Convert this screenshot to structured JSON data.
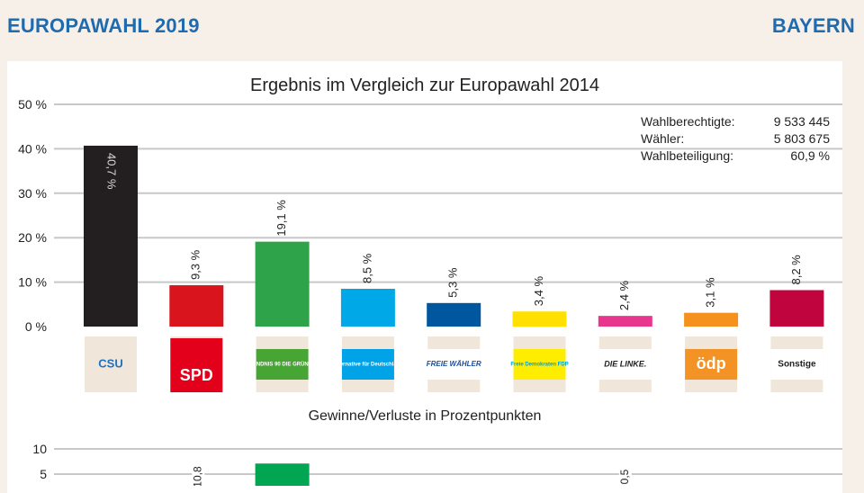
{
  "header": {
    "left_title": "EUROPAWAHL 2019",
    "right_title": "BAYERN"
  },
  "stats": {
    "rows": [
      {
        "label": "Wahlberechtigte:",
        "value": "9 533 445"
      },
      {
        "label": "Wähler:",
        "value": "5 803 675"
      },
      {
        "label": "Wahlbeteiligung:",
        "value": "60,9 %"
      }
    ]
  },
  "colors": {
    "accent": "#1f6bb0"
  },
  "chart_data": [
    {
      "type": "bar",
      "title": "Ergebnis im Vergleich zur Europawahl 2014",
      "xlabel": "",
      "ylabel": "",
      "ylim": [
        0,
        50
      ],
      "yticks": [
        0,
        10,
        20,
        30,
        40,
        50
      ],
      "ytick_labels": [
        "0 %",
        "10 %",
        "20 %",
        "30 %",
        "40 %",
        "50 %"
      ],
      "grid": true,
      "categories": [
        "CSU",
        "SPD",
        "Grüne",
        "AfD",
        "Freie Wähler",
        "FDP",
        "Die Linke",
        "ödp",
        "Sonstige"
      ],
      "values": [
        40.7,
        9.3,
        19.1,
        8.5,
        5.3,
        3.4,
        2.4,
        3.1,
        8.2
      ],
      "labels": [
        "40,7 %",
        "9,3 %",
        "19,1 %",
        "8,5 %",
        "5,3 %",
        "3,4 %",
        "2,4 %",
        "3,1 %",
        "8,2 %"
      ],
      "colors": [
        "#231f20",
        "#d9141c",
        "#2ea34a",
        "#00a8e8",
        "#0057a0",
        "#ffe000",
        "#e8358e",
        "#f5921e",
        "#c0053e"
      ],
      "logos": [
        {
          "text": "CSU",
          "bg": "#f0e6da",
          "fg": "#1a73c6"
        },
        {
          "text": "SPD",
          "bg": "#e3001b",
          "fg": "#ffffff"
        },
        {
          "text": "BÜNDNIS 90 DIE GRÜNEN",
          "bg": "#46a533",
          "fg": "#ffffff"
        },
        {
          "text": "Alternative für Deutschland",
          "bg": "#00a2e8",
          "fg": "#ffffff"
        },
        {
          "text": "FREIE WÄHLER",
          "bg": "#ffffff",
          "fg": "#1c4e9c"
        },
        {
          "text": "Freie Demokraten FDP",
          "bg": "#ffed00",
          "fg": "#009ee0"
        },
        {
          "text": "DIE LINKE.",
          "bg": "#ffffff",
          "fg": "#222222"
        },
        {
          "text": "ödp",
          "bg": "#f39325",
          "fg": "#ffffff"
        },
        {
          "text": "Sonstige",
          "bg": "#ffffff",
          "fg": "#222222"
        }
      ]
    },
    {
      "type": "bar",
      "title": "Gewinne/Verluste in Prozentpunkten",
      "xlabel": "",
      "ylabel": "",
      "yticks": [
        10,
        5
      ],
      "ytick_labels": [
        "10",
        "5"
      ],
      "grid": true,
      "categories": [
        "CSU",
        "SPD",
        "Grüne",
        "AfD",
        "Freie Wähler",
        "FDP",
        "Die Linke",
        "ödp",
        "Sonstige"
      ],
      "visible_labels": [
        {
          "category": "SPD",
          "label": "10,8"
        },
        {
          "category": "Die Linke",
          "label": "0,5"
        }
      ],
      "visible_bars": [
        {
          "category": "Grüne",
          "value": 7.1,
          "color": "#00a651"
        }
      ]
    }
  ]
}
